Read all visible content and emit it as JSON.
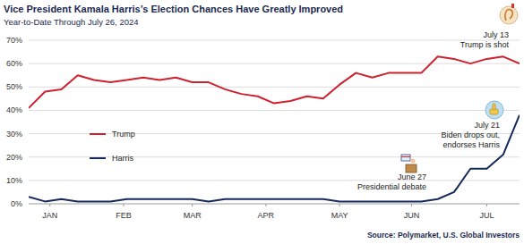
{
  "chart_data": {
    "type": "line",
    "title": "Vice President Kamala Harris’s Election Chances Have Greatly Improved",
    "subtitle": "Year-to-Date Through July 26, 2024",
    "source": "Source: Polymarket, U.S. Global Investors",
    "x": [
      0,
      1,
      2,
      3,
      4,
      5,
      6,
      7,
      8,
      9,
      10,
      11,
      12,
      13,
      14,
      15,
      16,
      17,
      18,
      19,
      20,
      21,
      22,
      23,
      24,
      25,
      26,
      27,
      28,
      29,
      30
    ],
    "xlim": [
      0,
      30
    ],
    "xticks": [
      {
        "value": 1.3,
        "label": "JAN"
      },
      {
        "value": 5.8,
        "label": "FEB"
      },
      {
        "value": 10,
        "label": "MAR"
      },
      {
        "value": 14.5,
        "label": "APR"
      },
      {
        "value": 19,
        "label": "MAY"
      },
      {
        "value": 23.4,
        "label": "JUN"
      },
      {
        "value": 28,
        "label": "JUL"
      }
    ],
    "ylim": [
      0,
      70
    ],
    "yticks": [
      {
        "value": 0,
        "label": "0%"
      },
      {
        "value": 10,
        "label": "10%"
      },
      {
        "value": 20,
        "label": "20%"
      },
      {
        "value": 30,
        "label": "30%"
      },
      {
        "value": 40,
        "label": "40%"
      },
      {
        "value": 50,
        "label": "50%"
      },
      {
        "value": 60,
        "label": "60%"
      },
      {
        "value": 70,
        "label": "70%"
      }
    ],
    "grid": true,
    "legend": "left",
    "series": [
      {
        "name": "Trump",
        "color": "#d0202e",
        "values": [
          41,
          48,
          49,
          55,
          53,
          52,
          53,
          54,
          53,
          54,
          52,
          52,
          49,
          47,
          46,
          43,
          44,
          46,
          45,
          51,
          56,
          54,
          56,
          56,
          56,
          63,
          62,
          60,
          62,
          63,
          60
        ]
      },
      {
        "name": "Harris",
        "color": "#15295b",
        "values": [
          3,
          1,
          2,
          1,
          1,
          1,
          2,
          2,
          2,
          2,
          2,
          1,
          2,
          2,
          2,
          2,
          2,
          2,
          2,
          1,
          1,
          1,
          1,
          1,
          1,
          2,
          5,
          15,
          15,
          21,
          38
        ]
      }
    ],
    "annotations": [
      {
        "date": "July 13",
        "text": [
          "Trump is shot"
        ]
      },
      {
        "date": "July 21",
        "text": [
          "Biden drops out,",
          "endorses Harris"
        ]
      },
      {
        "date": "June 27",
        "text": [
          "Presidential debate"
        ]
      }
    ]
  }
}
